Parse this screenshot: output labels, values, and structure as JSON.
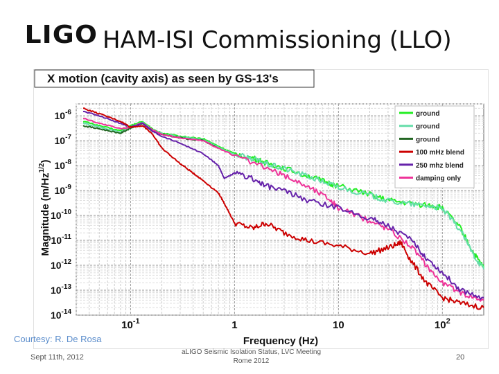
{
  "slide": {
    "logo": "LIGO",
    "title": "HAM-ISI Commissioning (LLO)",
    "courtesy": "Courtesy: R. De Rosa",
    "footer_date": "Sept 11th, 2012",
    "footer_center": "aLIGO Seismic Isolation Status, LVC Meeting Rome 2012",
    "page_number": "20"
  },
  "chart_data": {
    "type": "line",
    "title": "X motion (cavity axis) as seen by GS-13's",
    "xlabel": "Frequency (Hz)",
    "ylabel": "Magnitude (m/Hz^1/2)",
    "x_scale": "log",
    "y_scale": "log",
    "xlim": [
      0.03,
      250
    ],
    "ylim": [
      1e-14,
      3e-06
    ],
    "x_ticks": [
      {
        "value": 0.1,
        "base": "10",
        "exp": "-1"
      },
      {
        "value": 1,
        "base": "1",
        "exp": ""
      },
      {
        "value": 10,
        "base": "10",
        "exp": ""
      },
      {
        "value": 100,
        "base": "10",
        "exp": "2"
      }
    ],
    "y_ticks": [
      {
        "value": 1e-06,
        "base": "10",
        "exp": "-6"
      },
      {
        "value": 1e-07,
        "base": "10",
        "exp": "-7"
      },
      {
        "value": 1e-08,
        "base": "10",
        "exp": "-8"
      },
      {
        "value": 1e-09,
        "base": "10",
        "exp": "-9"
      },
      {
        "value": 1e-10,
        "base": "10",
        "exp": "-10"
      },
      {
        "value": 1e-11,
        "base": "10",
        "exp": "-11"
      },
      {
        "value": 1e-12,
        "base": "10",
        "exp": "-12"
      },
      {
        "value": 1e-13,
        "base": "10",
        "exp": "-13"
      },
      {
        "value": 1e-14,
        "base": "10",
        "exp": "-14"
      }
    ],
    "grid": true,
    "legend_position": "top-right",
    "series": [
      {
        "name": "ground",
        "color": "#22ee22",
        "points": [
          [
            0.035,
            6e-07
          ],
          [
            0.05,
            4e-07
          ],
          [
            0.08,
            2.5e-07
          ],
          [
            0.1,
            4e-07
          ],
          [
            0.13,
            6e-07
          ],
          [
            0.16,
            3e-07
          ],
          [
            0.2,
            2e-07
          ],
          [
            0.3,
            1.5e-07
          ],
          [
            0.5,
            1.2e-07
          ],
          [
            0.7,
            6e-08
          ],
          [
            1,
            3e-08
          ],
          [
            1.5,
            2e-08
          ],
          [
            2,
            1.3e-08
          ],
          [
            3,
            8e-09
          ],
          [
            5,
            4e-09
          ],
          [
            8,
            2e-09
          ],
          [
            10,
            1.5e-09
          ],
          [
            20,
            7e-10
          ],
          [
            30,
            4e-10
          ],
          [
            50,
            3e-10
          ],
          [
            80,
            2.5e-10
          ],
          [
            100,
            2e-10
          ],
          [
            150,
            3e-11
          ],
          [
            200,
            3e-12
          ],
          [
            250,
            8e-13
          ]
        ]
      },
      {
        "name": "ground",
        "color": "#66ddaa",
        "points": [
          [
            0.035,
            5e-07
          ],
          [
            0.05,
            3.5e-07
          ],
          [
            0.08,
            2.2e-07
          ],
          [
            0.1,
            3.5e-07
          ],
          [
            0.13,
            5.5e-07
          ],
          [
            0.16,
            2.8e-07
          ],
          [
            0.2,
            1.9e-07
          ],
          [
            0.3,
            1.4e-07
          ],
          [
            0.5,
            1.1e-07
          ],
          [
            0.7,
            5.5e-08
          ],
          [
            1,
            2.8e-08
          ],
          [
            1.5,
            1.9e-08
          ],
          [
            2,
            1.2e-08
          ],
          [
            3,
            7.5e-09
          ],
          [
            5,
            3.8e-09
          ],
          [
            8,
            1.9e-09
          ],
          [
            10,
            1.4e-09
          ],
          [
            20,
            6.5e-10
          ],
          [
            30,
            3.8e-10
          ],
          [
            50,
            2.8e-10
          ],
          [
            80,
            2.3e-10
          ],
          [
            100,
            1.8e-10
          ],
          [
            150,
            2.5e-11
          ],
          [
            200,
            2.5e-12
          ],
          [
            250,
            7e-13
          ]
        ]
      },
      {
        "name": "ground",
        "color": "#226622",
        "points": [
          [
            0.035,
            4e-07
          ],
          [
            0.05,
            3e-07
          ],
          [
            0.08,
            2e-07
          ],
          [
            0.1,
            3.2e-07
          ],
          [
            0.13,
            5e-07
          ],
          [
            0.16,
            2.5e-07
          ],
          [
            0.2,
            1.8e-07
          ],
          [
            0.3,
            1.3e-07
          ],
          [
            0.5,
            1e-07
          ],
          [
            0.7,
            5e-08
          ]
        ]
      },
      {
        "name": "100 mHz blend",
        "color": "#cc0000",
        "points": [
          [
            0.035,
            2e-06
          ],
          [
            0.05,
            1.2e-06
          ],
          [
            0.08,
            6e-07
          ],
          [
            0.1,
            3.5e-07
          ],
          [
            0.13,
            4e-07
          ],
          [
            0.16,
            2e-07
          ],
          [
            0.2,
            5e-08
          ],
          [
            0.3,
            1.2e-08
          ],
          [
            0.4,
            5e-09
          ],
          [
            0.5,
            2.5e-09
          ],
          [
            0.7,
            8e-10
          ],
          [
            0.8,
            3e-10
          ],
          [
            1,
            5e-11
          ],
          [
            1.5,
            3e-11
          ],
          [
            2,
            5e-11
          ],
          [
            3,
            2e-11
          ],
          [
            5,
            1e-11
          ],
          [
            10,
            6e-12
          ],
          [
            20,
            3e-12
          ],
          [
            30,
            5e-12
          ],
          [
            40,
            8e-12
          ],
          [
            50,
            1.5e-12
          ],
          [
            70,
            2e-13
          ],
          [
            100,
            5e-14
          ],
          [
            150,
            3e-14
          ],
          [
            250,
            2e-14
          ]
        ]
      },
      {
        "name": "250 mhz blend",
        "color": "#6622aa",
        "points": [
          [
            0.035,
            1.5e-06
          ],
          [
            0.05,
            1e-06
          ],
          [
            0.08,
            5e-07
          ],
          [
            0.1,
            3.5e-07
          ],
          [
            0.13,
            5e-07
          ],
          [
            0.16,
            2.5e-07
          ],
          [
            0.2,
            1.5e-07
          ],
          [
            0.3,
            8e-08
          ],
          [
            0.5,
            3e-08
          ],
          [
            0.7,
            1e-08
          ],
          [
            0.8,
            3e-09
          ],
          [
            1,
            5e-09
          ],
          [
            1.5,
            3e-09
          ],
          [
            2,
            1.5e-09
          ],
          [
            3,
            1e-09
          ],
          [
            5,
            4e-10
          ],
          [
            10,
            2e-10
          ],
          [
            20,
            8e-11
          ],
          [
            30,
            4e-11
          ],
          [
            50,
            1e-11
          ],
          [
            70,
            2e-12
          ],
          [
            100,
            5e-13
          ],
          [
            150,
            1e-13
          ],
          [
            250,
            5e-14
          ]
        ]
      },
      {
        "name": "damping only",
        "color": "#ee3399",
        "points": [
          [
            0.035,
            8e-07
          ],
          [
            0.05,
            5e-07
          ],
          [
            0.08,
            3e-07
          ],
          [
            0.1,
            3.5e-07
          ],
          [
            0.13,
            5e-07
          ],
          [
            0.16,
            2.8e-07
          ],
          [
            0.2,
            1.8e-07
          ],
          [
            0.3,
            1.3e-07
          ],
          [
            0.5,
            1e-07
          ],
          [
            0.7,
            5e-08
          ],
          [
            1,
            2.5e-08
          ],
          [
            2,
            8e-09
          ],
          [
            3,
            4e-09
          ],
          [
            5,
            1.5e-09
          ],
          [
            8,
            5e-10
          ],
          [
            10,
            2e-10
          ],
          [
            20,
            6e-11
          ],
          [
            30,
            3e-11
          ],
          [
            50,
            6e-12
          ],
          [
            70,
            1e-12
          ],
          [
            100,
            2e-13
          ],
          [
            150,
            8e-14
          ],
          [
            250,
            4e-14
          ]
        ]
      }
    ]
  }
}
